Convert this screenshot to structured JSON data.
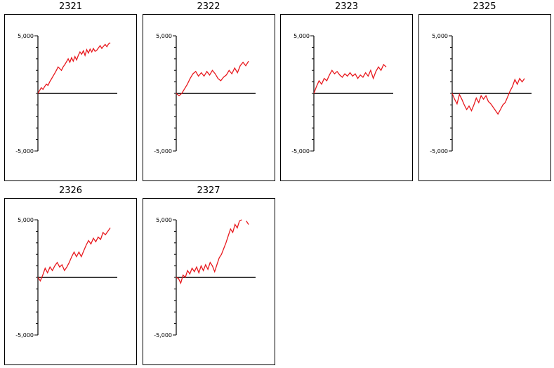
{
  "chart_data": [
    {
      "type": "line",
      "title": "2321",
      "ylim": [
        -5000,
        5000
      ],
      "yticks": [
        {
          "value": 5000,
          "label": "5,000"
        },
        {
          "value": -5000,
          "label": "-5,000"
        }
      ],
      "series": [
        {
          "values": [
            0,
            250,
            500,
            350,
            600,
            800,
            700,
            1000,
            1250,
            1500,
            1750,
            2000,
            2300,
            2150,
            2000,
            2300,
            2500,
            2750,
            3000,
            2700,
            3100,
            2800,
            3200,
            2900,
            3300,
            3600,
            3400,
            3700,
            3300,
            3800,
            3500,
            3850,
            3600,
            3900,
            3650,
            3750,
            3950,
            4150,
            3900,
            4100,
            4250,
            4050,
            4300,
            4400
          ]
        }
      ]
    },
    {
      "type": "line",
      "title": "2322",
      "ylim": [
        -5000,
        5000
      ],
      "yticks": [
        {
          "value": 5000,
          "label": "5,000"
        },
        {
          "value": -5000,
          "label": "-5,000"
        }
      ],
      "series": [
        {
          "values": [
            0,
            -200,
            0,
            400,
            800,
            1300,
            1700,
            1900,
            1500,
            1800,
            1500,
            1900,
            1600,
            2000,
            1700,
            1300,
            1100,
            1400,
            1600,
            2000,
            1700,
            2200,
            1800,
            2400,
            2700,
            2400,
            2800
          ]
        }
      ]
    },
    {
      "type": "line",
      "title": "2323",
      "ylim": [
        -5000,
        5000
      ],
      "yticks": [
        {
          "value": 5000,
          "label": "5,000"
        },
        {
          "value": -5000,
          "label": "-5,000"
        }
      ],
      "series": [
        {
          "values": [
            0,
            600,
            1100,
            800,
            1300,
            1100,
            1600,
            2000,
            1700,
            1900,
            1600,
            1400,
            1700,
            1500,
            1800,
            1500,
            1700,
            1300,
            1600,
            1400,
            1800,
            1500,
            2000,
            1300,
            1900,
            2300,
            2000,
            2500,
            2300
          ]
        }
      ]
    },
    {
      "type": "line",
      "title": "2325",
      "ylim": [
        -5000,
        5000
      ],
      "yticks": [
        {
          "value": 5000,
          "label": "5,000"
        },
        {
          "value": -5000,
          "label": "-5,000"
        }
      ],
      "series": [
        {
          "values": [
            0,
            -500,
            -900,
            -100,
            -500,
            -1000,
            -1400,
            -1100,
            -1500,
            -1000,
            -400,
            -800,
            -200,
            -500,
            -200,
            -700,
            -900,
            -1200,
            -1500,
            -1800,
            -1400,
            -1000,
            -800,
            -300,
            200,
            600,
            1200,
            800,
            1300,
            1000,
            1300
          ]
        }
      ]
    },
    {
      "type": "line",
      "title": "2326",
      "ylim": [
        -5000,
        5000
      ],
      "yticks": [
        {
          "value": 5000,
          "label": "5,000"
        },
        {
          "value": -5000,
          "label": "-5,000"
        }
      ],
      "series": [
        {
          "values": [
            0,
            -300,
            200,
            800,
            400,
            900,
            600,
            1000,
            1300,
            900,
            1100,
            600,
            900,
            1300,
            1800,
            2200,
            1800,
            2200,
            1800,
            2300,
            2800,
            3200,
            2900,
            3400,
            3100,
            3500,
            3300,
            3900,
            3700,
            4000,
            4300
          ]
        }
      ]
    },
    {
      "type": "line",
      "title": "2327",
      "ylim": [
        -5000,
        5000
      ],
      "yticks": [
        {
          "value": 5000,
          "label": "5,000"
        },
        {
          "value": -5000,
          "label": "-5,000"
        }
      ],
      "series": [
        {
          "values": [
            0,
            -100,
            -500,
            200,
            0,
            600,
            300,
            800,
            500,
            900,
            400,
            1000,
            600,
            1100,
            700,
            1300,
            1000,
            500,
            1100,
            1700,
            2000,
            2500,
            3000,
            3600,
            4200,
            3900,
            4600,
            4300,
            4900,
            5000,
            null,
            4900,
            4600
          ]
        }
      ]
    }
  ]
}
